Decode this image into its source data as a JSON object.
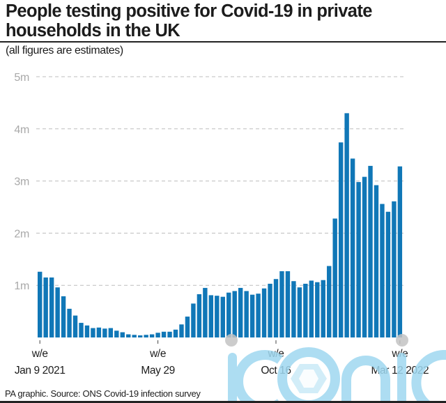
{
  "header": {
    "title": "People testing positive for Covid-19 in private households in the UK",
    "subtitle": "(all figures are estimates)"
  },
  "footer": {
    "source": "PA graphic. Source: ONS Covid-19 infection survey"
  },
  "watermark": {
    "text": "iconic",
    "color": "#9fd8f0",
    "dot_color": "#c4c4c4"
  },
  "colors": {
    "bar": "#1077b7",
    "grid": "#bdbdbd",
    "ytick": "#a9a9a9"
  },
  "chart_data": {
    "type": "bar",
    "title": "People testing positive for Covid-19 in private households in the UK",
    "subtitle": "(all figures are estimates)",
    "xlabel": "",
    "ylabel": "",
    "unit": "millions",
    "ylim": [
      0,
      5
    ],
    "grid": true,
    "y_ticks": [
      {
        "value": 1,
        "label": "1m"
      },
      {
        "value": 2,
        "label": "2m"
      },
      {
        "value": 3,
        "label": "3m"
      },
      {
        "value": 4,
        "label": "4m"
      },
      {
        "value": 5,
        "label": "5m"
      }
    ],
    "x_ticks": [
      {
        "index": 0,
        "line1": "w/e",
        "line2": "Jan 9 2021"
      },
      {
        "index": 20,
        "line1": "w/e",
        "line2": "May 29"
      },
      {
        "index": 40,
        "line1": "w/e",
        "line2": "Oct 16"
      },
      {
        "index": 61,
        "line1": "w/e",
        "line2": "Mar 12 2022"
      }
    ],
    "categories_note": "weekly, week ending Jan 9 2021 to Mar 12 2022",
    "values": [
      1.26,
      1.15,
      1.15,
      0.96,
      0.79,
      0.55,
      0.42,
      0.28,
      0.23,
      0.18,
      0.19,
      0.17,
      0.18,
      0.13,
      0.1,
      0.06,
      0.05,
      0.04,
      0.05,
      0.06,
      0.09,
      0.11,
      0.11,
      0.15,
      0.25,
      0.4,
      0.65,
      0.83,
      0.95,
      0.81,
      0.8,
      0.78,
      0.86,
      0.89,
      0.95,
      0.89,
      0.82,
      0.84,
      0.94,
      1.03,
      1.12,
      1.27,
      1.27,
      1.08,
      0.96,
      1.03,
      1.09,
      1.06,
      1.1,
      1.37,
      2.28,
      3.74,
      4.3,
      3.43,
      2.98,
      3.08,
      3.29,
      2.92,
      2.56,
      2.41,
      2.61,
      3.28
    ]
  }
}
